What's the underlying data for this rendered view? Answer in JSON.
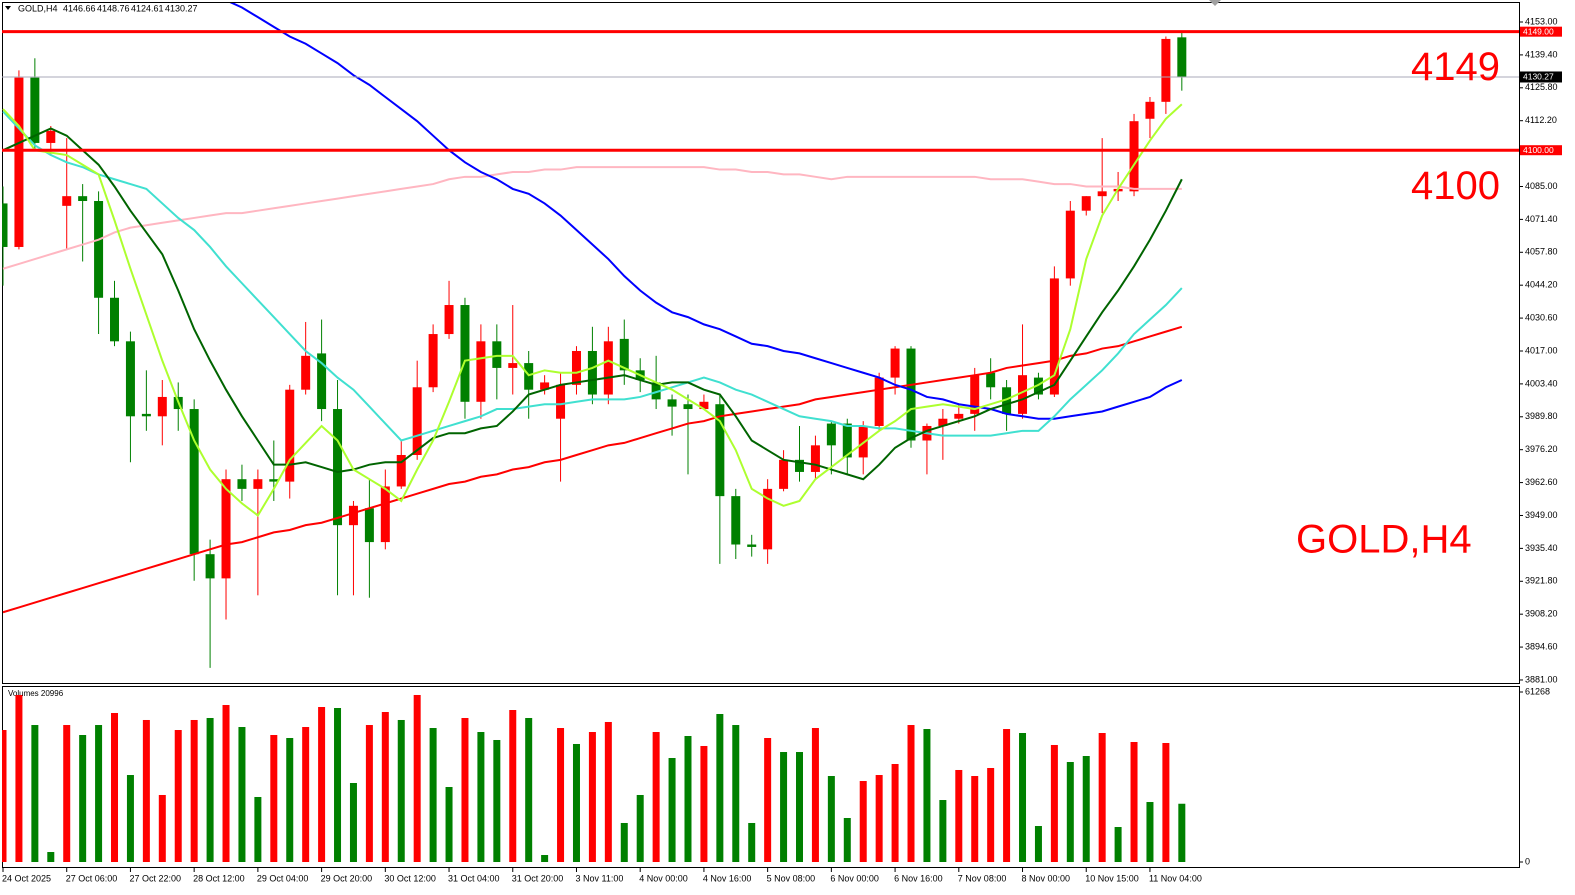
{
  "chart_data": [
    {
      "type": "candlestick",
      "symbol": "GOLD,H4",
      "categories": [
        "24 Oct 2025",
        null,
        null,
        null,
        "27 Oct 06:00",
        null,
        null,
        null,
        "27 Oct 22:00",
        null,
        null,
        null,
        "28 Oct 12:00",
        null,
        null,
        null,
        "29 Oct 04:00",
        null,
        null,
        null,
        "29 Oct 20:00",
        null,
        null,
        null,
        "30 Oct 12:00",
        null,
        null,
        null,
        "31 Oct 04:00",
        null,
        null,
        null,
        "31 Oct 20:00",
        null,
        null,
        null,
        "3 Nov 11:00",
        null,
        null,
        null,
        "4 Nov 00:00",
        null,
        null,
        null,
        "4 Nov 16:00",
        null,
        null,
        null,
        "5 Nov 08:00",
        null,
        null,
        null,
        "6 Nov 00:00",
        null,
        null,
        null,
        "6 Nov 16:00",
        null,
        null,
        null,
        "7 Nov 08:00",
        null,
        null,
        null,
        "8 Nov 00:00",
        null,
        null,
        null,
        "10 Nov 15:00",
        null,
        null,
        null,
        "11 Nov 04:00",
        null,
        null
      ],
      "open": [
        4078,
        4060,
        4130,
        4103,
        4077,
        4081,
        4079,
        4039,
        4021,
        3991,
        3990,
        3998,
        3993,
        3933,
        3923,
        3964,
        3960,
        3964,
        3963,
        4001,
        4016,
        3993,
        3945,
        3952,
        3938,
        3961,
        3974,
        4002,
        4024,
        4036,
        3996,
        4021,
        4010,
        4012,
        4001,
        3989,
        4003,
        4017,
        3999,
        4022,
        4009,
        4004,
        3997,
        3995,
        3993,
        3995,
        3957,
        3937,
        3935,
        3960,
        3972,
        3967,
        3987,
        3987,
        3973,
        3986,
        4006,
        4018,
        3980,
        3986,
        3989,
        3991,
        4008,
        4002,
        3991,
        4006,
        3999,
        4047,
        4075,
        4081,
        4083,
        4083,
        4113,
        4120,
        4146.66
      ],
      "high": [
        4085,
        4133,
        4138,
        4110,
        4105,
        4086,
        4083,
        4046,
        4025,
        4009,
        4005,
        4004,
        3997,
        3939,
        3968,
        3970,
        3968,
        3980,
        4003,
        4029,
        4030,
        4005,
        3955,
        3964,
        3968,
        3980,
        4013,
        4028,
        4046,
        4039,
        4028,
        4028,
        4036,
        4017,
        4007,
        4008,
        4019,
        4027,
        4027,
        4030,
        4014,
        4015,
        3999,
        3999,
        3999,
        3999,
        3960,
        3941,
        3964,
        3976,
        3986,
        3982,
        3988,
        3989,
        3988,
        4008,
        4019,
        4019,
        3987,
        3993,
        3995,
        4010,
        4014,
        4005,
        4028,
        4008,
        4052,
        4079,
        4081,
        4105,
        4091,
        4115,
        4122,
        4147,
        4148.76
      ],
      "low": [
        4044,
        4059,
        4100,
        4098,
        4059,
        4054,
        4024,
        4019,
        3971,
        3984,
        3978,
        3984,
        3922,
        3886,
        3906,
        3955,
        3916,
        3955,
        3956,
        3999,
        3988,
        3916,
        3916,
        3915,
        3935,
        3960,
        3972,
        4000,
        4022,
        3989,
        3989,
        3997,
        3999,
        3989,
        3999,
        3963,
        3999,
        3995,
        3995,
        4003,
        4000,
        3993,
        3982,
        3966,
        3993,
        3929,
        3931,
        3932,
        3929,
        3959,
        3963,
        3964,
        3966,
        3966,
        3966,
        3984,
        3999,
        3977,
        3966,
        3972,
        3987,
        3984,
        3997,
        3984,
        3989,
        3997,
        3998,
        4044,
        4073,
        4074,
        4079,
        4081,
        4105,
        4115,
        4124.61
      ],
      "close": [
        4060,
        4130,
        4103,
        4108,
        4081,
        4079,
        4039,
        4021,
        3990,
        3990,
        3998,
        3993,
        3933,
        3923,
        3964,
        3960,
        3964,
        3963,
        4001,
        4015,
        3993,
        3945,
        3953,
        3938,
        3961,
        3974,
        4002,
        4024,
        4036,
        3996,
        4021,
        4010,
        4012,
        4001,
        4004,
        4003,
        4017,
        3999,
        4021,
        4009,
        4005,
        3997,
        3994,
        3993,
        3996,
        3957,
        3937,
        3936,
        3960,
        3972,
        3967,
        3978,
        3978,
        3973,
        3986,
        4006,
        4018,
        3980,
        3986,
        3989,
        3991,
        4007,
        4002,
        3991,
        4007,
        3999,
        4047,
        4075,
        4081,
        4083,
        4084,
        4112,
        4120,
        4146,
        4130.27
      ],
      "up_color": "#ff0000",
      "down_color": "#008000",
      "ylim": [
        3879.75,
        4160.44
      ],
      "yticks": [
        {
          "value": 3881,
          "label": "3881.00"
        },
        {
          "value": 3894.6,
          "label": "3894.60"
        },
        {
          "value": 3908.2,
          "label": "3908.20"
        },
        {
          "value": 3921.8,
          "label": "3921.80"
        },
        {
          "value": 3935.4,
          "label": "3935.40"
        },
        {
          "value": 3949,
          "label": "3949.00"
        },
        {
          "value": 3962.6,
          "label": "3962.60"
        },
        {
          "value": 3976.2,
          "label": "3976.20"
        },
        {
          "value": 3989.8,
          "label": "3989.80"
        },
        {
          "value": 4003.4,
          "label": "4003.40"
        },
        {
          "value": 4017,
          "label": "4017.00"
        },
        {
          "value": 4030.6,
          "label": "4030.60"
        },
        {
          "value": 4044.2,
          "label": "4044.20"
        },
        {
          "value": 4057.8,
          "label": "4057.80"
        },
        {
          "value": 4071.4,
          "label": "4071.40"
        },
        {
          "value": 4085,
          "label": "4085.00"
        },
        {
          "value": 4112.2,
          "label": "4112.20"
        },
        {
          "value": 4125.8,
          "label": "4125.80"
        },
        {
          "value": 4139.4,
          "label": "4139.40"
        },
        {
          "value": 4153,
          "label": "4153.00"
        }
      ],
      "series": [
        {
          "color": "#ffb6c1",
          "values": [
            4051,
            4053,
            4055,
            4057,
            4059,
            4061,
            4063,
            4066,
            4068,
            4069,
            4070,
            4071,
            4072,
            4073,
            4074,
            4074,
            4075,
            4076,
            4077,
            4078,
            4079,
            4080,
            4081,
            4082,
            4083,
            4084,
            4085,
            4086,
            4088,
            4089,
            4089,
            4090,
            4091,
            4091,
            4092,
            4092,
            4093,
            4093,
            4093,
            4093,
            4093,
            4093,
            4093,
            4093,
            4093,
            4092,
            4092,
            4091,
            4091,
            4090,
            4090,
            4089,
            4088,
            4089,
            4089,
            4089,
            4089,
            4089,
            4089,
            4089,
            4089,
            4089,
            4088,
            4088,
            4088,
            4087,
            4086,
            4086,
            4085,
            4085,
            4085,
            4084,
            4084,
            4084,
            4084
          ]
        },
        {
          "color": "#ff0000",
          "values": [
            3909,
            3911,
            3913,
            3915,
            3917,
            3919,
            3921,
            3923,
            3925,
            3927,
            3929,
            3931,
            3933,
            3935,
            3937,
            3938,
            3940,
            3942,
            3943,
            3945,
            3946,
            3948,
            3950,
            3952,
            3954,
            3956,
            3958,
            3960,
            3962,
            3963,
            3965,
            3966,
            3968,
            3969,
            3971,
            3972,
            3974,
            3976,
            3978,
            3979,
            3981,
            3983,
            3985,
            3987,
            3988,
            3990,
            3991,
            3992,
            3993,
            3994,
            3995,
            3997,
            3998,
            3999,
            4000,
            4001,
            4002,
            4003,
            4004,
            4005,
            4006,
            4007,
            4008,
            4010,
            4011,
            4012,
            4013,
            4015,
            4016,
            4018,
            4019,
            4021,
            4023,
            4025,
            4027
          ]
        },
        {
          "color": "#0000ff",
          "values": [
            null,
            null,
            null,
            null,
            null,
            null,
            null,
            null,
            null,
            null,
            null,
            null,
            null,
            null,
            4162,
            4159,
            4155,
            4151,
            4147,
            4144,
            4140,
            4136,
            4131,
            4127,
            4122,
            4117,
            4112,
            4106,
            4100,
            4095,
            4091,
            4088,
            4084,
            4082,
            4078,
            4073,
            4067,
            4061,
            4055,
            4048,
            4042,
            4037,
            4033,
            4031,
            4028,
            4026,
            4023,
            4020,
            4019,
            4017,
            4016,
            4014,
            4012,
            4010,
            4008,
            4006,
            4003,
            4001,
            3998,
            3997,
            3995,
            3994,
            3993,
            3991,
            3990,
            3989,
            3989,
            3990,
            3991,
            3992,
            3994,
            3996,
            3998,
            4002,
            4005
          ]
        },
        {
          "color": "#40e0d0",
          "values": [
            4116,
            4109,
            4102,
            4098,
            4095,
            4093,
            4090,
            4088,
            4086,
            4084,
            4078,
            4072,
            4067,
            4060,
            4052,
            4045,
            4038,
            4031,
            4024,
            4017,
            4012,
            4006,
            4001,
            3994,
            3987,
            3980,
            3982,
            3984,
            3986,
            3988,
            3990,
            3993,
            3993,
            3994,
            3995,
            3995,
            3996,
            3997,
            3997,
            3997,
            3998,
            4000,
            4002,
            4004,
            4006,
            4004,
            4001,
            3999,
            3996,
            3993,
            3990,
            3989,
            3988,
            3986,
            3986,
            3985,
            3985,
            3984,
            3983,
            3982,
            3982,
            3982,
            3982,
            3983,
            3984,
            3984,
            3990,
            3997,
            4003,
            4009,
            4016,
            4024,
            4030,
            4036,
            4043
          ]
        },
        {
          "color": "#006400",
          "values": [
            4100,
            4103,
            4106,
            4109,
            4106,
            4100,
            4094,
            4085,
            4075,
            4066,
            4057,
            4042,
            4026,
            4013,
            4001,
            3990,
            3980,
            3970,
            3970,
            3971,
            3969,
            3967,
            3968,
            3970,
            3971,
            3971,
            3976,
            3981,
            3983,
            3983,
            3985,
            3986,
            3992,
            3999,
            4001,
            4003,
            4004,
            4005,
            4006,
            4007,
            4005,
            4003,
            4004,
            4004,
            4001,
            3999,
            3990,
            3980,
            3976,
            3972,
            3971,
            3970,
            3968,
            3966,
            3964,
            3970,
            3977,
            3981,
            3984,
            3986,
            3988,
            3990,
            3993,
            3995,
            3997,
            4000,
            4003,
            4013,
            4023,
            4033,
            4042,
            4052,
            4063,
            4075,
            4088
          ]
        },
        {
          "color": "#adff2f",
          "values": [
            4117,
            4110,
            4100,
            4099,
            4098,
            4094,
            4090,
            4071,
            4051,
            4032,
            4013,
            3996,
            3980,
            3968,
            3960,
            3954,
            3949,
            3960,
            3972,
            3979,
            3986,
            3980,
            3968,
            3964,
            3960,
            3955,
            3968,
            3980,
            3996,
            4013,
            4014,
            4015,
            4015,
            4007,
            4009,
            4008,
            4008,
            4010,
            4013,
            4010,
            4007,
            4004,
            4001,
            3997,
            3993,
            3988,
            3976,
            3960,
            3956,
            3953,
            3955,
            3964,
            3969,
            3974,
            3979,
            3984,
            3988,
            3993,
            3994,
            3995,
            3994,
            3993,
            3995,
            3997,
            4000,
            4003,
            4007,
            4026,
            4055,
            4073,
            4084,
            4094,
            4104,
            4113,
            4119
          ]
        }
      ],
      "hlines": [
        {
          "value": 4149,
          "label": "4149.00",
          "color": "#ff0000"
        },
        {
          "value": 4100,
          "label": "4100.00",
          "color": "#ff0000"
        }
      ],
      "bid_color": "#a8a8b8"
    },
    {
      "type": "bar",
      "title": "Volumes 20996",
      "values": [
        47570,
        60190,
        49370,
        3600,
        49370,
        45770,
        49370,
        53700,
        31350,
        51180,
        24150,
        47570,
        51180,
        51900,
        56580,
        48650,
        23430,
        45770,
        44690,
        48650,
        55860,
        55500,
        28470,
        49370,
        54060,
        51180,
        60190,
        48290,
        27030,
        51900,
        46850,
        43970,
        54780,
        51900,
        2520,
        48290,
        42530,
        46850,
        50460,
        14060,
        24150,
        46850,
        37480,
        45410,
        41810,
        53340,
        49370,
        14060,
        44690,
        39640,
        39640,
        48290,
        30990,
        15860,
        29190,
        31350,
        35320,
        49370,
        47930,
        22340,
        33160,
        30990,
        33880,
        47930,
        46490,
        12970,
        42170,
        36040,
        38200,
        46490,
        12610,
        43250,
        21620,
        42890,
        20996
      ],
      "colors": [
        "#ff0000",
        "#ff0000",
        "#008000",
        "#008000",
        "#ff0000",
        "#008000",
        "#008000",
        "#ff0000",
        "#008000",
        "#ff0000",
        "#ff0000",
        "#ff0000",
        "#ff0000",
        "#008000",
        "#ff0000",
        "#008000",
        "#008000",
        "#ff0000",
        "#008000",
        "#ff0000",
        "#ff0000",
        "#008000",
        "#008000",
        "#ff0000",
        "#ff0000",
        "#008000",
        "#ff0000",
        "#008000",
        "#008000",
        "#ff0000",
        "#008000",
        "#008000",
        "#ff0000",
        "#008000",
        "#008000",
        "#ff0000",
        "#008000",
        "#ff0000",
        "#ff0000",
        "#008000",
        "#008000",
        "#ff0000",
        "#008000",
        "#008000",
        "#ff0000",
        "#008000",
        "#008000",
        "#008000",
        "#ff0000",
        "#008000",
        "#008000",
        "#ff0000",
        "#008000",
        "#008000",
        "#ff0000",
        "#ff0000",
        "#ff0000",
        "#ff0000",
        "#008000",
        "#008000",
        "#ff0000",
        "#ff0000",
        "#ff0000",
        "#ff0000",
        "#008000",
        "#008000",
        "#ff0000",
        "#008000",
        "#008000",
        "#ff0000",
        "#008000",
        "#ff0000",
        "#008000",
        "#ff0000",
        "#008000"
      ],
      "ylim": [
        0,
        61268
      ],
      "yticks": [
        0,
        61268
      ]
    }
  ]
}
